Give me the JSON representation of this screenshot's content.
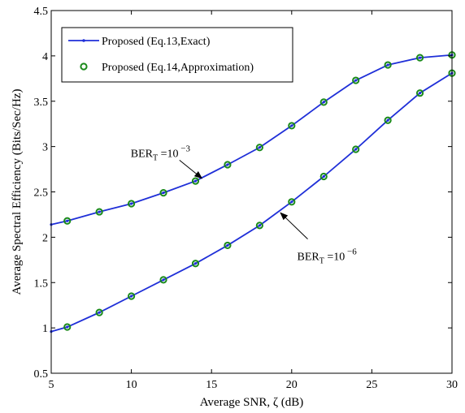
{
  "chart_data": {
    "type": "line",
    "title": "",
    "xlabel": "Average SNR, ζ (dB)",
    "ylabel": "Average Spectral Efficiency (Bits/Sec/Hz)",
    "xlim": [
      5,
      30
    ],
    "ylim": [
      0.5,
      4.5
    ],
    "xticks": [
      5,
      10,
      15,
      20,
      25,
      30
    ],
    "yticks": [
      0.5,
      1,
      1.5,
      2,
      2.5,
      3,
      3.5,
      4,
      4.5
    ],
    "xtick_labels": [
      "5",
      "10",
      "15",
      "20",
      "25",
      "30"
    ],
    "ytick_labels": [
      "0.5",
      "1",
      "1.5",
      "2",
      "2.5",
      "3",
      "3.5",
      "4",
      "4.5"
    ],
    "grid": false,
    "legend_position": "top-left",
    "legend": [
      {
        "label": "Proposed (Eq.13,Exact)",
        "style": "line",
        "color": "#1f2fd8"
      },
      {
        "label": "Proposed (Eq.14,Approximation)",
        "style": "marker",
        "color": "#1a8a1a"
      }
    ],
    "series": [
      {
        "curve": "BER_T = 10^-3",
        "line_x": [
          5,
          6,
          8,
          10,
          12,
          14,
          16,
          18,
          20,
          22,
          24,
          26,
          28,
          30
        ],
        "line_y": [
          2.14,
          2.18,
          2.28,
          2.37,
          2.49,
          2.62,
          2.8,
          2.99,
          3.23,
          3.49,
          3.73,
          3.9,
          3.98,
          4.01
        ],
        "marker_x": [
          6,
          8,
          10,
          12,
          14,
          16,
          18,
          20,
          22,
          24,
          26,
          28,
          30
        ],
        "marker_y": [
          2.18,
          2.28,
          2.37,
          2.49,
          2.62,
          2.8,
          2.99,
          3.23,
          3.49,
          3.73,
          3.9,
          3.98,
          4.01
        ]
      },
      {
        "curve": "BER_T = 10^-6",
        "line_x": [
          5,
          6,
          8,
          10,
          12,
          14,
          16,
          18,
          20,
          22,
          24,
          26,
          28,
          30
        ],
        "line_y": [
          0.96,
          1.01,
          1.17,
          1.35,
          1.53,
          1.71,
          1.91,
          2.13,
          2.39,
          2.67,
          2.97,
          3.29,
          3.59,
          3.81
        ],
        "marker_x": [
          6,
          8,
          10,
          12,
          14,
          16,
          18,
          20,
          22,
          24,
          26,
          28,
          30
        ],
        "marker_y": [
          1.01,
          1.17,
          1.35,
          1.53,
          1.71,
          1.91,
          2.13,
          2.39,
          2.67,
          2.97,
          3.29,
          3.59,
          3.81
        ]
      }
    ],
    "annotations": [
      {
        "base": "BER",
        "sub": "T",
        "mid": " =10",
        "sup": "−3",
        "arrow_tail": [
          13.0,
          2.85
        ],
        "arrow_head": [
          14.4,
          2.65
        ]
      },
      {
        "base": "BER",
        "sub": "T",
        "mid": " =10",
        "sup": "−6",
        "arrow_tail": [
          21.0,
          1.98
        ],
        "arrow_head": [
          19.3,
          2.27
        ]
      }
    ]
  }
}
